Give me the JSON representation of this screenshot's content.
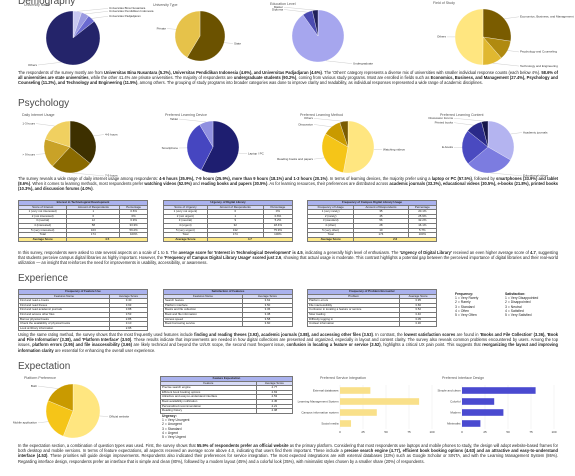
{
  "sections": [
    {
      "title": "Demography",
      "charts": [
        {
          "type": "pie",
          "title": "University Name",
          "labels": [
            "Universitas Bina Nusantara",
            "Universitas Pendidikan Indonesia",
            "Universitas Padjadjaran",
            "Others"
          ],
          "values": [
            5.2,
            4.6,
            4.6,
            85.6
          ],
          "colors": [
            "#c8c8f0",
            "#9a9ae0",
            "#6a6ad0",
            "#24246a"
          ]
        },
        {
          "type": "pie",
          "title": "University Type",
          "labels": [
            "State",
            "Private"
          ],
          "values": [
            58.6,
            41.4
          ],
          "colors": [
            "#6b5200",
            "#e6c24a"
          ]
        },
        {
          "type": "pie",
          "title": "Education Level",
          "labels": [
            "Undergraduate",
            "Diploma",
            "Master"
          ],
          "values": [
            90.2,
            6.3,
            3.5
          ],
          "colors": [
            "#a6a6ee",
            "#4a4ab0",
            "#20205a"
          ]
        },
        {
          "type": "pie",
          "title": "Field of Study",
          "labels": [
            "Economics, Business, and Management",
            "Psychology and Counseling",
            "Technology and Engineering",
            "Others"
          ],
          "values": [
            27.4,
            11.2,
            11.5,
            49.9
          ],
          "colors": [
            "#7a5c00",
            "#b08a10",
            "#e0b830",
            "#ffe680"
          ]
        }
      ],
      "tables": [],
      "paragraphs": [
        [
          "The respondents of the survey mostly are from ",
          "Universitas Bina Nusantara (5.2%), Universitas Pendidikan Indonesia (4.6%), and Universitas Padjadjaran (4.6%)",
          ". The 'Others' category represents a diverse mix of universities with smaller individual response counts (each below 4%). ",
          "58.6% of all universities are state universities",
          ", while the other 41.4% are private universities. The majority of respondents are ",
          "undergraduate students (90.2%)",
          ", coming from various study programs. Most are enrolled in fields such as ",
          "Economics, Business, and Management (27.4%), Psychology and Counseling (11.2%), and Technology and Engineering (11.5%)",
          ", among others. The grouping of study programs into broader categories was done to improve clarity and readability, as individual responses represented a wide range of academic disciplines."
        ]
      ],
      "legends": []
    },
    {
      "title": "Psychology",
      "charts": [
        {
          "type": "pie",
          "title": "Daily Internet Usage",
          "labels": [
            "4-6 hours",
            "7-9 hours",
            "> 9 hours",
            "1-3 hours"
          ],
          "values": [
            35.9,
            25.9,
            18.1,
            20.1
          ],
          "colors": [
            "#3d3000",
            "#8a6a00",
            "#c9a227",
            "#f0d060"
          ]
        },
        {
          "type": "pie",
          "title": "Preferred Learning Device",
          "labels": [
            "Laptop / PC",
            "Smartphone",
            "Tablet"
          ],
          "values": [
            57.5,
            33.9,
            8.6
          ],
          "colors": [
            "#1e1e70",
            "#4646c0",
            "#9090e0"
          ]
        },
        {
          "type": "pie",
          "title": "Preferred Learning Method",
          "labels": [
            "Watching videos",
            "Reading books and papers",
            "Discussion",
            "Others"
          ],
          "values": [
            52.9,
            30.5,
            11.5,
            5.1
          ],
          "colors": [
            "#ffe680",
            "#f5c518",
            "#c99a00",
            "#7a5c00"
          ]
        },
        {
          "type": "pie",
          "title": "Preferred Learning Content",
          "labels": [
            "Academic journals",
            "Educational videos",
            "E-books",
            "Printed books",
            "Discussion forums"
          ],
          "values": [
            33.3,
            30.5,
            21.8,
            10.3,
            4.0
          ],
          "colors": [
            "#b4b4f0",
            "#7c7ce0",
            "#4a4ac0",
            "#2a2a8a",
            "#15154a"
          ]
        }
      ],
      "tables": [
        {
          "title": "Interest in Technological Development",
          "columns": [
            "Score of Interest",
            "Amount of Respondents",
            "Percentage"
          ],
          "rows": [
            [
              "1 (very not interested)",
              "1",
              "0.6%"
            ],
            [
              "2 (not interested)",
              "0",
              "0%"
            ],
            [
              "3 (neutral)",
              "12",
              "6.9%"
            ],
            [
              "4 (interested)",
              "58",
              "33.3%"
            ],
            [
              "5 (very interested)",
              "103",
              "59.2%"
            ],
            [
              "Total",
              "174",
              "100%"
            ]
          ],
          "footer": [
            "Average Score",
            "4.5"
          ]
        },
        {
          "title": "Urgency of Digital Library",
          "columns": [
            "Score of Urgency",
            "Amount of Respondents",
            "Percentage"
          ],
          "rows": [
            [
              "1 (very not urgent)",
              "0",
              "0%"
            ],
            [
              "2 (not urgent)",
              "1",
              "0.6%"
            ],
            [
              "3 (neutral)",
              "9",
              "5.2%"
            ],
            [
              "4 (urgent)",
              "32",
              "18.4%"
            ],
            [
              "5 (very urgent)",
              "132",
              "75.9%"
            ],
            [
              "Total",
              "174",
              "100%"
            ]
          ],
          "footer": [
            "Average Score",
            "4.7"
          ]
        },
        {
          "title": "Frequency of Campus Digital Library Usage",
          "columns": [
            "Frequency of Usage",
            "Amount of Respondents",
            "Percentage"
          ],
          "rows": [
            [
              "1 (very rarely)",
              "35",
              "20.1%"
            ],
            [
              "2 (rarely)",
              "45",
              "25.9%"
            ],
            [
              "3 (standard)",
              "56",
              "32.2%"
            ],
            [
              "4 (often)",
              "28",
              "16.1%"
            ],
            [
              "5 (very often)",
              "10",
              "5.7%"
            ],
            [
              "Total",
              "174",
              "100%"
            ]
          ],
          "footer": [
            "Average Score",
            "2.6"
          ]
        }
      ],
      "paragraphs": [
        [
          "The survey reveals a wide range of daily internet usage among respondents: ",
          "4-6 hours (35.9%), 7-9 hours (25.9%), more than 9 hours (18.1%) and 1-3 hours (20.1%)",
          ". In terms of learning devices, the majority prefer using a ",
          "laptop or PC (57.5%)",
          ", followed by ",
          "smartphones (33.9%) and tablet (8.6%)",
          ". When it comes to learning methods, most respondents prefer ",
          "watching videos (52.9%)",
          " and ",
          "reading books and papers (30.5%)",
          ". As for learning resources, their preferences are distributed across ",
          "academic journals (33.3%), educational videos (30.5%), e-books (21.8%), printed books (10.3%), and discussion forums (4.0%)",
          "."
        ],
        [
          "In this survey, respondents were asked to rate several aspects on a scale of 1 to 5. The ",
          "average score for 'Interest in Technological Development' is 4.5",
          ", indicating a generally high level of enthusiasm. The ",
          "'Urgency of Digital Library'",
          " received an even higher average score of ",
          "4.7",
          ", suggesting that students perceive campus digital libraries as highly important. However, the ",
          "'Frequency of Campus Digital Library Usage' scored just 2.6",
          ", showing that actual usage is moderate. This contrast highlights a potential gap between the perceived importance of digital libraries and their real-world utilization — an insight that reinforces the need for improvements in usability, accessibility, or awareness."
        ]
      ],
      "legends": []
    },
    {
      "title": "Experience",
      "charts": [],
      "tables": [
        {
          "title": "Frequency of Feature Use",
          "columns": [
            "Features Name",
            "Average Score"
          ],
          "rows": [
            [
              "Find and read e-books",
              "3.40"
            ],
            [
              "Find and read theses",
              "3.93"
            ],
            [
              "Find and read academic journals",
              "3.88"
            ],
            [
              "Find and access other files",
              "3.53"
            ],
            [
              "Borrow physical books",
              "2.85"
            ],
            [
              "Check the availability of physical books",
              "3.10"
            ],
            [
              "Look at library information",
              "2.95"
            ]
          ]
        },
        {
          "title": "Satisfaction of Features",
          "columns": [
            "Features Name",
            "Average Score"
          ],
          "rows": [
            [
              "Search feature",
              "3.62"
            ],
            [
              "Platform interface",
              "3.50"
            ],
            [
              "Books and file collection",
              "3.36"
            ],
            [
              "Book and file information",
              "3.38"
            ],
            [
              "Access speed",
              "3.58"
            ],
            [
              "Book borrowing service",
              "3.60"
            ]
          ]
        },
        {
          "title": "Frequency of Problem Encounter",
          "columns": [
            "Problem",
            "Average Score"
          ],
          "rows": [
            [
              "Platform errors",
              "3.95"
            ],
            [
              "File inaccessibility",
              "3.66"
            ],
            [
              "Confusion in locating a feature or service",
              "3.52"
            ],
            [
              "Slow loading",
              "3.40"
            ],
            [
              "Difficulty logging in",
              "3.05"
            ],
            [
              "Unclear information",
              "3.30"
            ]
          ]
        }
      ],
      "paragraphs": [
        [
          "Using the same rating method, the survey shows that the most frequently used features include ",
          "finding and reading theses (3.93), academic journals (3.88), and accessing other files (3.53)",
          ". In contrast, the ",
          "lowest satisfaction scores",
          " are found in ",
          "'Books and File Collection' (3.36), 'Book and File Information' (3.38), and 'Platform Interface' (3.50)",
          ". These results indicate that improvements are needed in how digital collections are presented and organized, especially in layout and content clarity. The survey also reveals common problems encountered by users. Among the top issues, ",
          "platform errors (3.95) and file inaccessibility (3.66)",
          " are likely technical and beyond the UI/UX scope, the second most frequent issue, ",
          "confusion in locating a feature or service (3.52)",
          ", highlights a critical UX pain point. This suggests that ",
          "reorganizing the layout and improving information clarity",
          " are essential for enhancing the overall user experience."
        ]
      ],
      "legends": [
        {
          "title": "Frequency:",
          "items": [
            "1 = Very Rarely",
            "2 = Rarely",
            "3 = Standard",
            "4 = Often",
            "5 = Very Often"
          ]
        },
        {
          "title": "Satisfaction:",
          "items": [
            "1 = Very Disappointed",
            "2 = Disappointed",
            "3 = Neutral",
            "4 = Satisfied",
            "5 = Very Satisfied"
          ]
        }
      ]
    },
    {
      "title": "Expectation",
      "charts": [
        {
          "type": "pie",
          "title": "Platform Preference",
          "labels": [
            "Official website",
            "Mobile application",
            "Both"
          ],
          "values": [
            55.9,
            25.3,
            18.8
          ],
          "colors": [
            "#ffe680",
            "#f5c518",
            "#c99a00"
          ]
        },
        {
          "type": "bar",
          "title": "Preferred Service Integration",
          "categories": [
            "External databases",
            "Learning Management System",
            "Campus information system",
            "Social media"
          ],
          "values": [
            33,
            86,
            40,
            12
          ],
          "color": "#f9e08a",
          "xlim": [
            0,
            100
          ],
          "xticks": [
            0,
            25,
            50,
            75,
            100
          ]
        },
        {
          "type": "bar",
          "title": "Preferred Interface Design",
          "categories": [
            "Simple and clean",
            "Colorful",
            "Modern",
            "Minimalist"
          ],
          "values": [
            80,
            35,
            45,
            20
          ],
          "color": "#4a4ad0",
          "xlim": [
            0,
            100
          ],
          "xticks": [
            0,
            25,
            50,
            75,
            100
          ]
        }
      ],
      "tables": [
        {
          "title": "Feature Expectation",
          "columns": [
            "Feature",
            "Average Score"
          ],
          "rows": [
            [
              "Precise search engine",
              "4.77"
            ],
            [
              "Efficient book booking options",
              "4.63"
            ],
            [
              "Attractive and easy-to-understand interface",
              "4.53"
            ],
            [
              "Book availability notification",
              "4.45"
            ],
            [
              "Personalized recommendation",
              "4.21"
            ],
            [
              "Reading history",
              "4.08"
            ]
          ]
        }
      ],
      "paragraphs": [
        [
          "In the expectation section, a combination of question types was used. First, the survey shows that ",
          "55.9% of respondents prefer an official website",
          " as the primary platform. Considering that most respondents use laptops and mobile phones to study, the design will adopt website-based frames for both desktop and mobile versions. In terms of feature expectations, all aspects received an average score above 4.0, indicating that users find them important. These include a ",
          "precise search engine (4.77), efficient book booking options (4.63) and an attractive and easy-to-understand interface (4.53)",
          ". These priorities will guide design improvements. Respondents also indicated their preferences for service integration. The most expected integrations are with external databases (33%) such as Google Scholar or SINTA, and with the Learning Management System (86%). Regarding interface design, respondents prefer an interface that is simple and clean (80%), followed by a modern layout (45%) and a colorful look (35%), with minimalist styles chosen by a smaller share (20%) of respondents."
        ]
      ],
      "legends": [
        {
          "title": "Urgency:",
          "items": [
            "1 = Very Unurgent",
            "2 = Unurgent",
            "3 = Standard",
            "4 = Urgent",
            "5 = Very Urgent"
          ]
        }
      ]
    }
  ]
}
